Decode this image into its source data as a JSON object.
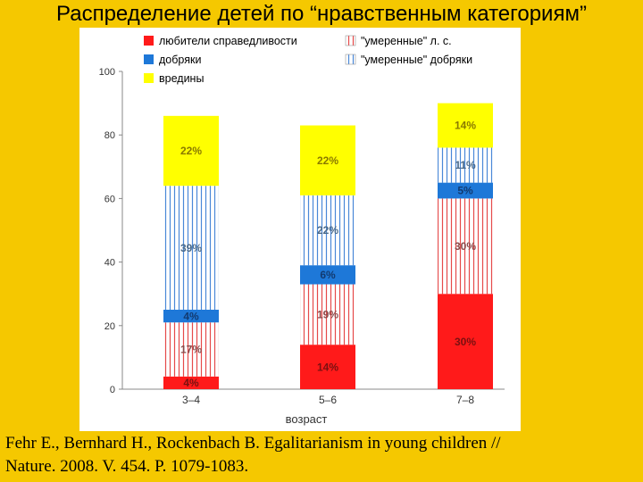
{
  "title": "Распределение детей по “нравственным категориям”",
  "citation": {
    "line1": "Fehr E., Bernhard H., Rockenbach B. Egalitarianism in young children //",
    "line2": "Nature. 2008. V. 454. P. 1079-1083."
  },
  "colors": {
    "red": "#FF1A1A",
    "blue": "#1E78D8",
    "yellow": "#FFFF00",
    "red_stripe": "#E64A4A",
    "blue_stripe": "#4A88D8",
    "background": "#F5C800"
  },
  "chart_data": {
    "type": "bar",
    "stacked": true,
    "xlabel": "возраст",
    "ylabel": "",
    "ylim": [
      0,
      100
    ],
    "yticks": [
      "0",
      "20",
      "40",
      "60",
      "80",
      "100"
    ],
    "categories": [
      "3–4",
      "5–6",
      "7–8"
    ],
    "legend_position": "top",
    "series": [
      {
        "name": "любители справедливости",
        "pattern": "solid-red",
        "values": [
          4,
          14,
          30
        ],
        "labels": [
          "4%",
          "14%",
          "30%"
        ]
      },
      {
        "name": "\"умеренные\" л. с.",
        "pattern": "striped-red",
        "values": [
          17,
          19,
          30
        ],
        "labels": [
          "17%",
          "19%",
          "30%"
        ]
      },
      {
        "name": "добряки",
        "pattern": "solid-blue",
        "values": [
          4,
          6,
          5
        ],
        "labels": [
          "4%",
          "6%",
          "5%"
        ]
      },
      {
        "name": "\"умеренные\" добряки",
        "pattern": "striped-blue",
        "values": [
          39,
          22,
          11
        ],
        "labels": [
          "39%",
          "22%",
          "11%"
        ]
      },
      {
        "name": "вредины",
        "pattern": "solid-yellow",
        "values": [
          22,
          22,
          14
        ],
        "labels": [
          "22%",
          "22%",
          "14%"
        ]
      }
    ]
  }
}
